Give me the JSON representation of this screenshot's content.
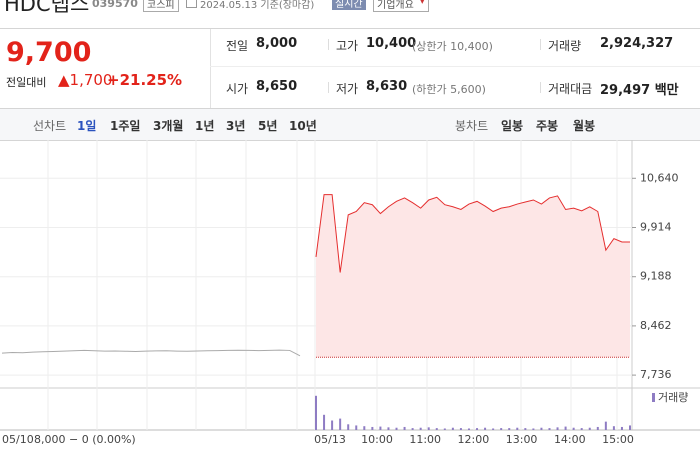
{
  "header": {
    "name": "HDC랩스",
    "code": "039570",
    "market": "코스피",
    "date": "2024.05.13 기준(장마감)",
    "realtime": "실시간",
    "company_button": "기업개요"
  },
  "quote": {
    "price": "9,700",
    "change_label": "전일대비",
    "change": "▲1,700",
    "rate": "+21.25%"
  },
  "stats": {
    "rows": [
      [
        [
          "전일",
          "8,000",
          ""
        ],
        [
          "고가",
          "10,400",
          "(상한가 10,400)"
        ],
        [
          "거래량",
          "2,924,327",
          ""
        ]
      ],
      [
        [
          "시가",
          "8,650",
          ""
        ],
        [
          "저가",
          "8,630",
          "(하한가 5,600)"
        ],
        [
          "거래대금",
          "29,497 백만",
          ""
        ]
      ]
    ]
  },
  "tabs": {
    "line_label": "선차트",
    "line_items": [
      "1일",
      "1주일",
      "3개월",
      "1년",
      "3년",
      "5년",
      "10년"
    ],
    "candle_label": "봉차트",
    "candle_items": [
      "일봉",
      "주봉",
      "월봉"
    ]
  },
  "chart_data": {
    "type": "line",
    "ylim": [
      7590,
      10910
    ],
    "yticks": [
      {
        "value": 10640,
        "label": "10,640"
      },
      {
        "value": 9914,
        "label": "9,914"
      },
      {
        "value": 9188,
        "label": "9,188"
      },
      {
        "value": 8462,
        "label": "8,462"
      },
      {
        "value": 7736,
        "label": "7,736"
      }
    ],
    "base_value": 8000,
    "prev_day": {
      "date": "05/10",
      "summary": "8,000 − 0 (0.00%)",
      "values": [
        8060,
        8070,
        8065,
        8075,
        8080,
        8085,
        8090,
        8095,
        8100,
        8095,
        8090,
        8092,
        8088,
        8085,
        8090,
        8093,
        8095,
        8090,
        8088,
        8092,
        8095,
        8098,
        8100,
        8102,
        8100,
        8098,
        8100,
        8105,
        8100,
        8020
      ]
    },
    "today": {
      "date": "05/13",
      "times": [
        "10:00",
        "11:00",
        "12:00",
        "13:00",
        "14:00",
        "15:00"
      ],
      "values": [
        9480,
        10400,
        10400,
        9250,
        10100,
        10150,
        10280,
        10250,
        10120,
        10220,
        10300,
        10350,
        10280,
        10200,
        10320,
        10360,
        10250,
        10220,
        10180,
        10260,
        10300,
        10230,
        10150,
        10200,
        10220,
        10260,
        10290,
        10320,
        10260,
        10350,
        10380,
        10180,
        10200,
        10160,
        10220,
        10150,
        9580,
        9750,
        9700,
        9700
      ]
    },
    "volume": {
      "name": "거래량",
      "color": "#8e7cc3",
      "ylim": [
        0,
        100
      ],
      "values": [
        90,
        40,
        25,
        30,
        15,
        12,
        10,
        8,
        9,
        7,
        6,
        8,
        5,
        6,
        7,
        5,
        4,
        6,
        5,
        4,
        5,
        6,
        4,
        5,
        5,
        6,
        5,
        4,
        6,
        5,
        7,
        9,
        6,
        5,
        6,
        8,
        22,
        10,
        8,
        12
      ]
    }
  }
}
